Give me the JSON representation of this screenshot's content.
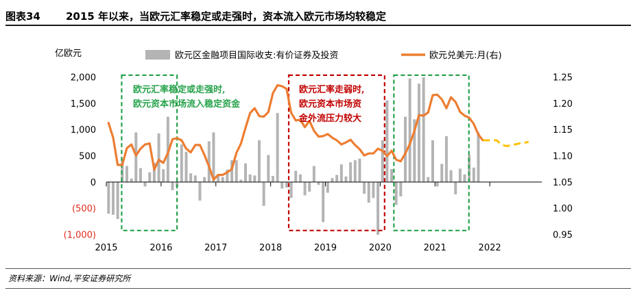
{
  "header": {
    "figure_no": "图表34",
    "title": "2015 年以来，当欧元汇率稳定或走强时，资本流入欧元市场均较稳定"
  },
  "source": "资料来源：Wind,平安证券研究所",
  "chart_data": {
    "type": "bar+line",
    "left_axis": {
      "unit_label": "亿欧元",
      "ylim": [
        -1000,
        2000
      ],
      "ticks": [
        2000,
        1500,
        1000,
        500,
        0,
        -500,
        -1000
      ],
      "tick_labels": [
        "2,000",
        "1,500",
        "1,000",
        "500",
        "0",
        "(500)",
        "(1,000)"
      ],
      "negative_color": "#e0281b"
    },
    "right_axis": {
      "ylim": [
        0.95,
        1.25
      ],
      "ticks": [
        1.25,
        1.2,
        1.15,
        1.1,
        1.05,
        1.0,
        0.95
      ],
      "tick_labels": [
        "1.25",
        "1.20",
        "1.15",
        "1.10",
        "1.05",
        "1.00",
        "0.95"
      ]
    },
    "x_axis": {
      "labels": [
        "2015",
        "2016",
        "2017",
        "2018",
        "2019",
        "2020",
        "2021",
        "2022"
      ],
      "label_dates": [
        2015.0,
        2016.0,
        2017.0,
        2018.0,
        2019.0,
        2020.0,
        2021.0,
        2022.0
      ],
      "range": [
        2015.0,
        2022.95
      ]
    },
    "legend": {
      "bar_label": "欧元区金融项目国际收支:有价证券及投资",
      "line_label": "欧元兑美元:月(右)",
      "position": "top"
    },
    "colors": {
      "bars": "#b4b4b4",
      "line": "#ed7d31",
      "forecast": "#ffc000",
      "green_box": "#26a24b",
      "red_box": "#c00000"
    },
    "bar_series": {
      "start": "2015-01",
      "values": [
        -600,
        -620,
        -700,
        450,
        310,
        70,
        950,
        270,
        -80,
        190,
        370,
        930,
        250,
        1250,
        -150,
        -90,
        720,
        580,
        170,
        130,
        -350,
        100,
        780,
        950,
        150,
        100,
        240,
        420,
        420,
        50,
        360,
        150,
        130,
        800,
        -450,
        520,
        120,
        1320,
        -120,
        -100,
        -300,
        220,
        150,
        -250,
        -180,
        310,
        -50,
        -760,
        -200,
        80,
        140,
        340,
        110,
        380,
        420,
        450,
        -220,
        -390,
        -300,
        -1000,
        800,
        1560,
        250,
        -430,
        -270,
        1250,
        1980,
        1200,
        1880,
        2000,
        100,
        800,
        -80,
        350,
        880,
        230,
        -230,
        260,
        150,
        520,
        280,
        950
      ]
    },
    "line_series": {
      "start": "2015-01",
      "values": [
        1.163,
        1.135,
        1.083,
        1.083,
        1.115,
        1.122,
        1.101,
        1.114,
        1.122,
        1.124,
        1.074,
        1.093,
        1.087,
        1.106,
        1.132,
        1.134,
        1.13,
        1.114,
        1.107,
        1.121,
        1.121,
        1.102,
        1.08,
        1.055,
        1.064,
        1.064,
        1.069,
        1.075,
        1.106,
        1.124,
        1.154,
        1.182,
        1.191,
        1.176,
        1.175,
        1.184,
        1.22,
        1.235,
        1.233,
        1.228,
        1.182,
        1.168,
        1.169,
        1.155,
        1.167,
        1.148,
        1.137,
        1.138,
        1.142,
        1.135,
        1.13,
        1.122,
        1.126,
        1.131,
        1.121,
        1.113,
        1.101,
        1.105,
        1.105,
        1.114,
        1.11,
        1.1,
        1.11,
        1.093,
        1.09,
        1.105,
        1.123,
        1.148,
        1.178,
        1.177,
        1.183,
        1.216,
        1.217,
        1.208,
        1.191,
        1.212,
        1.203,
        1.184,
        1.177,
        1.173,
        1.161,
        1.141,
        1.13
      ]
    },
    "forecast_series": {
      "start": "2022-02",
      "values": [
        1.13,
        1.122,
        1.119,
        1.12,
        1.122,
        1.124,
        1.125,
        1.127
      ]
    },
    "annotations": [
      {
        "color": "green",
        "box": [
          2015.28,
          2016.29
        ],
        "lines": [
          "欧元汇率稳定或走强时,",
          "欧元资本市场流入稳定资金"
        ]
      },
      {
        "color": "red",
        "box": [
          2018.33,
          2020.08
        ],
        "lines": [
          "欧元汇率走弱时,",
          "欧元资本市场资",
          "金外流压力较大"
        ]
      },
      {
        "color": "green",
        "box": [
          2020.25,
          2021.62
        ],
        "lines": []
      }
    ]
  }
}
